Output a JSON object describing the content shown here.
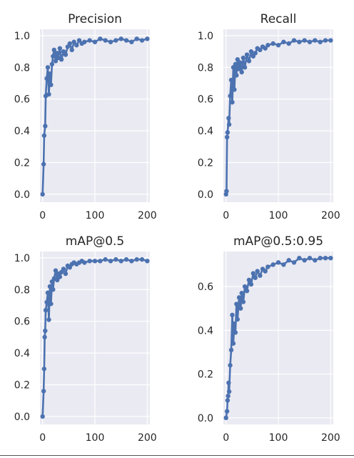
{
  "colors": {
    "line": "#4c72b0",
    "plot_bg": "#eaeaf2",
    "grid": "#ffffff",
    "text": "#262626"
  },
  "chart_data": [
    {
      "type": "line",
      "title": "Precision",
      "xlabel": "",
      "ylabel": "",
      "xlim": [
        -5,
        205
      ],
      "ylim": [
        -0.05,
        1.04
      ],
      "xticks": [
        0,
        100,
        200
      ],
      "xtick_labels": [
        "0",
        "100",
        "200"
      ],
      "yticks": [
        0.0,
        0.2,
        0.4,
        0.6,
        0.8,
        1.0
      ],
      "ytick_labels": [
        "0.0",
        "0.2",
        "0.4",
        "0.6",
        "0.8",
        "1.0"
      ],
      "grid": true,
      "series": [
        {
          "x": [
            0,
            2,
            3,
            5,
            6,
            8,
            10,
            12,
            14,
            16,
            18,
            20,
            22,
            25,
            28,
            30,
            33,
            36,
            40,
            44,
            48,
            52,
            56,
            60,
            65,
            70,
            75,
            80,
            90,
            100,
            110,
            120,
            130,
            140,
            150,
            160,
            170,
            180,
            190,
            200
          ],
          "y": [
            0.0,
            0.19,
            0.37,
            0.43,
            0.62,
            0.73,
            0.8,
            0.63,
            0.76,
            0.69,
            0.82,
            0.87,
            0.91,
            0.84,
            0.89,
            0.86,
            0.92,
            0.85,
            0.9,
            0.88,
            0.93,
            0.95,
            0.91,
            0.96,
            0.94,
            0.97,
            0.95,
            0.96,
            0.97,
            0.96,
            0.98,
            0.97,
            0.96,
            0.97,
            0.98,
            0.97,
            0.96,
            0.98,
            0.97,
            0.98
          ]
        }
      ]
    },
    {
      "type": "line",
      "title": "Recall",
      "xlabel": "",
      "ylabel": "",
      "xlim": [
        -5,
        205
      ],
      "ylim": [
        -0.05,
        1.04
      ],
      "xticks": [
        0,
        100,
        200
      ],
      "xtick_labels": [
        "0",
        "100",
        "200"
      ],
      "yticks": [
        0.0,
        0.2,
        0.4,
        0.6,
        0.8,
        1.0
      ],
      "ytick_labels": [
        "0.0",
        "0.2",
        "0.4",
        "0.6",
        "0.8",
        "1.0"
      ],
      "grid": true,
      "series": [
        {
          "x": [
            0,
            1,
            2,
            3,
            5,
            6,
            8,
            10,
            12,
            14,
            16,
            18,
            20,
            22,
            24,
            27,
            30,
            33,
            36,
            40,
            44,
            48,
            52,
            56,
            60,
            65,
            70,
            75,
            80,
            90,
            100,
            110,
            120,
            130,
            140,
            150,
            160,
            170,
            180,
            190,
            200
          ],
          "y": [
            0.0,
            0.02,
            0.36,
            0.39,
            0.48,
            0.44,
            0.62,
            0.72,
            0.58,
            0.8,
            0.66,
            0.82,
            0.75,
            0.85,
            0.79,
            0.83,
            0.77,
            0.86,
            0.8,
            0.88,
            0.84,
            0.9,
            0.87,
            0.89,
            0.92,
            0.91,
            0.93,
            0.92,
            0.94,
            0.95,
            0.94,
            0.96,
            0.95,
            0.97,
            0.96,
            0.97,
            0.96,
            0.97,
            0.96,
            0.97,
            0.97
          ]
        }
      ]
    },
    {
      "type": "line",
      "title": "mAP@0.5",
      "xlabel": "",
      "ylabel": "",
      "xlim": [
        -5,
        205
      ],
      "ylim": [
        -0.05,
        1.04
      ],
      "xticks": [
        0,
        100,
        200
      ],
      "xtick_labels": [
        "0",
        "100",
        "200"
      ],
      "yticks": [
        0.0,
        0.2,
        0.4,
        0.6,
        0.8,
        1.0
      ],
      "ytick_labels": [
        "0.0",
        "0.2",
        "0.4",
        "0.6",
        "0.8",
        "1.0"
      ],
      "grid": true,
      "series": [
        {
          "x": [
            0,
            2,
            3,
            4,
            5,
            6,
            8,
            10,
            12,
            14,
            16,
            18,
            20,
            22,
            25,
            28,
            30,
            33,
            36,
            40,
            44,
            48,
            52,
            56,
            60,
            65,
            70,
            75,
            80,
            90,
            100,
            110,
            120,
            130,
            140,
            150,
            160,
            170,
            180,
            190,
            200
          ],
          "y": [
            0.0,
            0.16,
            0.3,
            0.5,
            0.54,
            0.67,
            0.72,
            0.78,
            0.61,
            0.82,
            0.71,
            0.85,
            0.8,
            0.87,
            0.92,
            0.86,
            0.9,
            0.88,
            0.91,
            0.93,
            0.9,
            0.95,
            0.94,
            0.96,
            0.97,
            0.96,
            0.97,
            0.98,
            0.97,
            0.98,
            0.98,
            0.98,
            0.99,
            0.98,
            0.99,
            0.98,
            0.99,
            0.98,
            0.99,
            0.99,
            0.98
          ]
        }
      ]
    },
    {
      "type": "line",
      "title": "mAP@0.5:0.95",
      "xlabel": "",
      "ylabel": "",
      "xlim": [
        -5,
        205
      ],
      "ylim": [
        -0.03,
        0.76
      ],
      "xticks": [
        0,
        100,
        200
      ],
      "xtick_labels": [
        "0",
        "100",
        "200"
      ],
      "yticks": [
        0.0,
        0.2,
        0.4,
        0.6
      ],
      "ytick_labels": [
        "0.0",
        "0.2",
        "0.4",
        "0.6"
      ],
      "grid": true,
      "series": [
        {
          "x": [
            0,
            2,
            3,
            4,
            5,
            6,
            8,
            10,
            12,
            14,
            16,
            18,
            20,
            22,
            25,
            28,
            30,
            33,
            36,
            40,
            44,
            48,
            52,
            56,
            60,
            65,
            70,
            75,
            80,
            90,
            100,
            110,
            120,
            130,
            140,
            150,
            160,
            170,
            180,
            190,
            200
          ],
          "y": [
            0.0,
            0.03,
            0.08,
            0.1,
            0.16,
            0.12,
            0.24,
            0.31,
            0.47,
            0.34,
            0.43,
            0.39,
            0.52,
            0.45,
            0.55,
            0.5,
            0.57,
            0.53,
            0.6,
            0.58,
            0.63,
            0.61,
            0.66,
            0.64,
            0.67,
            0.65,
            0.68,
            0.67,
            0.69,
            0.7,
            0.71,
            0.7,
            0.72,
            0.71,
            0.73,
            0.72,
            0.73,
            0.72,
            0.73,
            0.73,
            0.73
          ]
        }
      ]
    }
  ]
}
